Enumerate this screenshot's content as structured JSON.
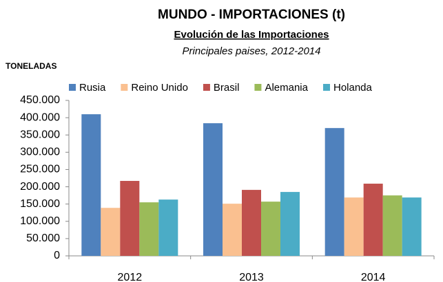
{
  "chart_data": {
    "type": "bar",
    "title": "MUNDO - IMPORTACIONES (t)",
    "subtitle": "Evolución de las Importaciones",
    "annotation": "Principales paises, 2012-2014",
    "y_label": "TONELADAS",
    "categories": [
      "2012",
      "2013",
      "2014"
    ],
    "series": [
      {
        "name": "Rusia",
        "color": "#4f81bd",
        "values": [
          410000,
          384000,
          370000
        ]
      },
      {
        "name": "Reino Unido",
        "color": "#fac090",
        "values": [
          139000,
          151000,
          169000
        ]
      },
      {
        "name": "Brasil",
        "color": "#c0504d",
        "values": [
          217000,
          191000,
          209000
        ]
      },
      {
        "name": "Alemania",
        "color": "#9bbb59",
        "values": [
          155000,
          157000,
          175000
        ]
      },
      {
        "name": "Holanda",
        "color": "#4bacc6",
        "values": [
          163000,
          185000,
          169000
        ]
      }
    ],
    "ylim": [
      0,
      450000
    ],
    "yticks": [
      0,
      {
        "value": 50000,
        "label": "50.000"
      },
      {
        "value": 100000,
        "label": "100.000"
      },
      {
        "value": 150000,
        "label": "150.000"
      },
      {
        "value": 200000,
        "label": "200.000"
      },
      {
        "value": 250000,
        "label": "250.000"
      },
      {
        "value": 300000,
        "label": "300.000"
      },
      {
        "value": 350000,
        "label": "350.000"
      },
      {
        "value": 400000,
        "label": "400.000"
      },
      {
        "value": 450000,
        "label": "450.000"
      }
    ],
    "legend": "top",
    "grid": false
  }
}
